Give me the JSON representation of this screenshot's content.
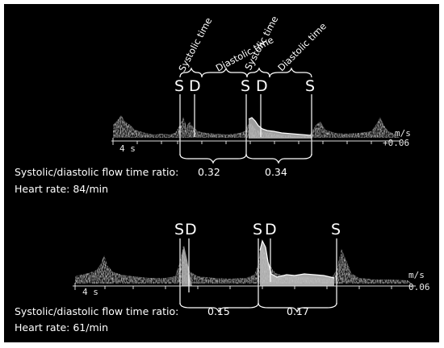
{
  "colors": {
    "background": "#000000",
    "foreground": "#ffffff",
    "spectrum": "#9a9a9a"
  },
  "panel_top": {
    "phase_labels": [
      "Systolic time",
      "Diastolic time",
      "Systolic time",
      "Diastolic time"
    ],
    "markers": [
      "S",
      "D",
      "S",
      "D",
      "S"
    ],
    "time_scale": "4 s",
    "velocity_unit": "m/s",
    "velocity_value": "+0.06",
    "ratio_label": "Systolic/diastolic flow time ratio:",
    "ratio_values": [
      "0.32",
      "0.34"
    ],
    "heart_rate": "Heart rate: 84/min"
  },
  "panel_bottom": {
    "markers": [
      "S",
      "D",
      "S",
      "D",
      "S"
    ],
    "time_scale": "4 s",
    "velocity_unit": "m/s",
    "velocity_value": "0.06",
    "ratio_label": "Systolic/diastolic flow time ratio:",
    "ratio_values": [
      "0.15",
      "0.17"
    ],
    "heart_rate": "Heart rate: 61/min"
  }
}
